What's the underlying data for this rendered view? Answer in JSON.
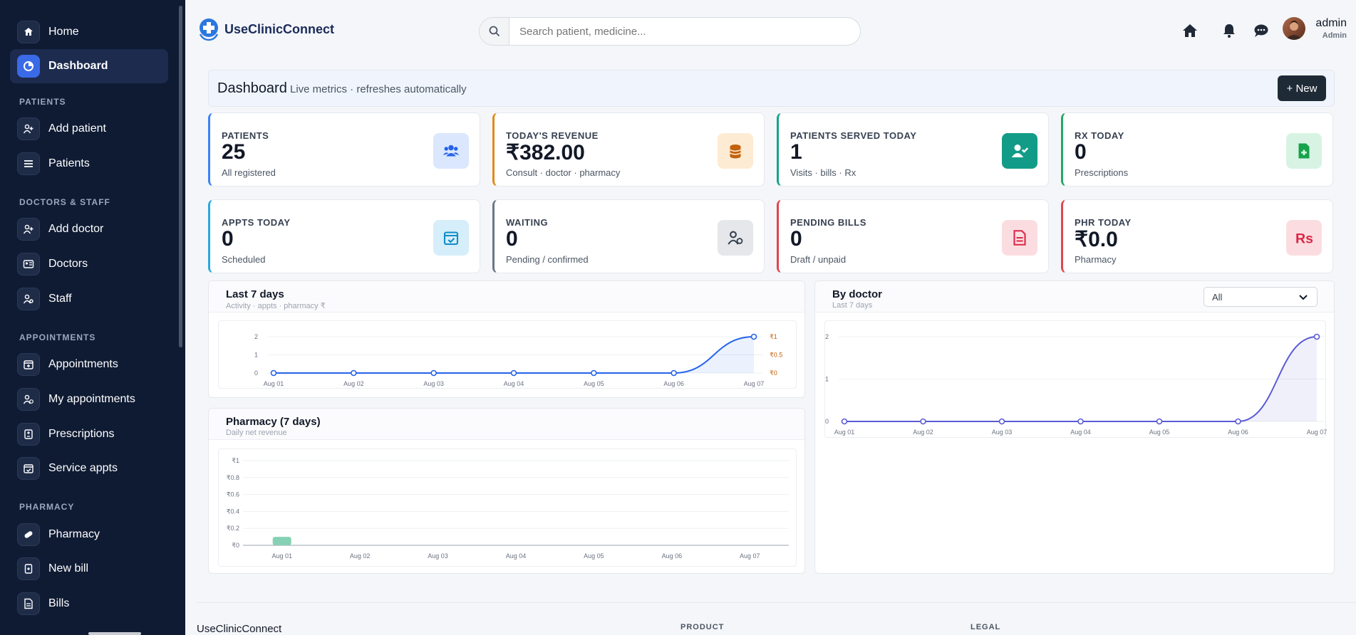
{
  "sidebar": {
    "nav": [
      {
        "label": "Home",
        "icon": "home-icon"
      },
      {
        "label": "Dashboard",
        "icon": "pie-chart-icon"
      }
    ],
    "sections": [
      {
        "title": "PATIENTS",
        "items": [
          {
            "label": "Add patient",
            "icon": "user-plus-icon"
          },
          {
            "label": "Patients",
            "icon": "list-icon"
          }
        ]
      },
      {
        "title": "DOCTORS & STAFF",
        "items": [
          {
            "label": "Add doctor",
            "icon": "user-plus-icon"
          },
          {
            "label": "Doctors",
            "icon": "id-card-icon"
          },
          {
            "label": "Staff",
            "icon": "user-gear-icon"
          }
        ]
      },
      {
        "title": "APPOINTMENTS",
        "items": [
          {
            "label": "Appointments",
            "icon": "calendar-plus-icon"
          },
          {
            "label": "My appointments",
            "icon": "user-clock-icon"
          },
          {
            "label": "Prescriptions",
            "icon": "prescription-icon"
          },
          {
            "label": "Service appts",
            "icon": "calendar-check-icon"
          }
        ]
      },
      {
        "title": "PHARMACY",
        "items": [
          {
            "label": "Pharmacy",
            "icon": "pills-icon"
          },
          {
            "label": "New bill",
            "icon": "prescription-bottle-icon"
          },
          {
            "label": "Bills",
            "icon": "file-invoice-icon"
          }
        ]
      }
    ]
  },
  "header": {
    "brand": "UseClinicConnect",
    "search_placeholder": "Search patient, medicine...",
    "user_name": "admin",
    "user_role": "Admin"
  },
  "dashboard": {
    "title": "Dashboard",
    "subtitle": "Live metrics · refreshes automatically",
    "new_button": "+ New"
  },
  "cards": [
    {
      "label": "PATIENTS",
      "value": "25",
      "sub": "All registered",
      "accent": "#3b82f6",
      "icon": "users-icon",
      "icon_bg": "#dbe7fd",
      "icon_color": "#2563eb"
    },
    {
      "label": "TODAY'S REVENUE",
      "value": "₹382.00",
      "sub": "Consult · doctor · pharmacy",
      "accent": "#e08a17",
      "icon": "coins-icon",
      "icon_bg": "#fdebd3",
      "icon_color": "#c2620c"
    },
    {
      "label": "PATIENTS SERVED TODAY",
      "value": "1",
      "sub": "Visits · bills · Rx",
      "accent": "#14a38b",
      "icon": "user-check-icon",
      "icon_bg": "#129c87",
      "icon_color": "#ffffff"
    },
    {
      "label": "RX TODAY",
      "value": "0",
      "sub": "Prescriptions",
      "accent": "#22a865",
      "icon": "file-medical-icon",
      "icon_bg": "#d8f3e4",
      "icon_color": "#16a34a"
    },
    {
      "label": "APPTS TODAY",
      "value": "0",
      "sub": "Scheduled",
      "accent": "#29a8dd",
      "icon": "calendar-check-icon",
      "icon_bg": "#d6eefa",
      "icon_color": "#0e8dc9"
    },
    {
      "label": "WAITING",
      "value": "0",
      "sub": "Pending / confirmed",
      "accent": "#6b7785",
      "icon": "user-clock-icon",
      "icon_bg": "#e5e7eb",
      "icon_color": "#374151"
    },
    {
      "label": "PENDING BILLS",
      "value": "0",
      "sub": "Draft / unpaid",
      "accent": "#e0454f",
      "icon": "file-invoice-icon",
      "icon_bg": "#fbdde1",
      "icon_color": "#dc2647"
    },
    {
      "label": "PHR TODAY",
      "value": "₹0.0",
      "sub": "Pharmacy",
      "accent": "#e0454f",
      "icon": "rupee-sign-icon",
      "icon_bg": "#fbdde1",
      "icon_color": "#dc2647"
    }
  ],
  "panels": {
    "last7": {
      "title": "Last 7 days",
      "subtitle": "Activity · appts · pharmacy ₹"
    },
    "pharmacy": {
      "title": "Pharmacy (7 days)",
      "subtitle": "Daily net revenue"
    },
    "by_doctor": {
      "title": "By doctor",
      "subtitle": "Last 7 days",
      "filter_value": "All"
    }
  },
  "chart_data": [
    {
      "type": "line",
      "categories": [
        "Aug 01",
        "Aug 02",
        "Aug 03",
        "Aug 04",
        "Aug 05",
        "Aug 06",
        "Aug 07"
      ],
      "series": [
        {
          "values": [
            0,
            0,
            0,
            0,
            0,
            0,
            2
          ],
          "color": "#2563eb"
        }
      ],
      "ylim": [
        0,
        2
      ],
      "yticks": [
        "0",
        "1",
        "2"
      ],
      "y2ticks": [
        "₹0",
        "₹0.5",
        "₹1"
      ],
      "y2color": "#c2620c",
      "grid": true
    },
    {
      "type": "bar",
      "categories": [
        "Aug 01",
        "Aug 02",
        "Aug 03",
        "Aug 04",
        "Aug 05",
        "Aug 06",
        "Aug 07"
      ],
      "values": [
        0.1,
        0,
        0,
        0,
        0,
        0,
        0
      ],
      "ylim": [
        0,
        1
      ],
      "yticks": [
        "₹0",
        "₹0.2",
        "₹0.4",
        "₹0.6",
        "₹0.8",
        "₹1"
      ],
      "color": "#86d1b4",
      "grid": true
    },
    {
      "type": "line",
      "categories": [
        "Aug 01",
        "Aug 02",
        "Aug 03",
        "Aug 04",
        "Aug 05",
        "Aug 06",
        "Aug 07"
      ],
      "series": [
        {
          "values": [
            0,
            0,
            0,
            0,
            0,
            0,
            2
          ],
          "color": "#5b5bd6"
        }
      ],
      "ylim": [
        0,
        2
      ],
      "yticks": [
        "0",
        "1",
        "2"
      ],
      "grid": true
    }
  ],
  "footer": {
    "brand": "UseClinicConnect",
    "col1": "PRODUCT",
    "col2": "LEGAL"
  }
}
